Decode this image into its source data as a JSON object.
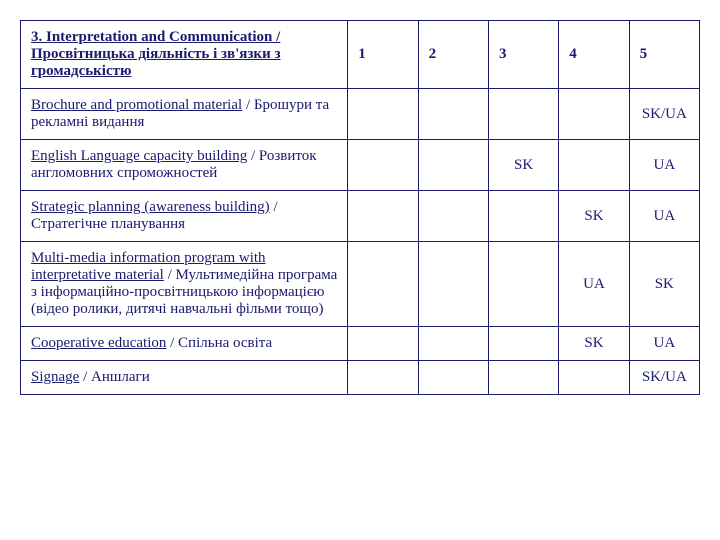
{
  "header": {
    "title_en": "3. Interpretation and Communication /",
    "title_uk": "Просвітницька діяльність і зв'язки з громадськістю",
    "cols": [
      "1",
      "2",
      "3",
      "4",
      "5"
    ]
  },
  "rows": [
    {
      "label_en": "Brochure and promotional material",
      "label_sep": " / ",
      "label_uk": "Брошури та рекламні видання",
      "cells": [
        "",
        "",
        "",
        "",
        "SK/UA"
      ]
    },
    {
      "label_en": "English Language capacity building",
      "label_sep": " / ",
      "label_uk": "Розвиток англомовних спроможностей",
      "cells": [
        "",
        "",
        "SK",
        "",
        "UA"
      ]
    },
    {
      "label_en": "Strategic planning (awareness building)",
      "label_sep": " / ",
      "label_uk": "Стратегічне планування",
      "cells": [
        "",
        "",
        "",
        "SK",
        "UA"
      ]
    },
    {
      "label_en": "Multi-media information program with interpretative material",
      "label_sep": " / ",
      "label_uk": "Мультимедійна програма з інформаційно-просвітницькою інформацією (відео ролики, дитячі навчальні фільми тощо)",
      "cells": [
        "",
        "",
        "",
        "UA",
        "SK"
      ]
    },
    {
      "label_en": "Cooperative education",
      "label_sep": " / ",
      "label_uk": "Спільна освіта",
      "cells": [
        "",
        "",
        "",
        "SK",
        "UA"
      ]
    },
    {
      "label_en": "Signage",
      "label_sep": " / ",
      "label_uk": "Аншлаги",
      "cells": [
        "",
        "",
        "",
        "",
        "SK/UA"
      ]
    }
  ]
}
